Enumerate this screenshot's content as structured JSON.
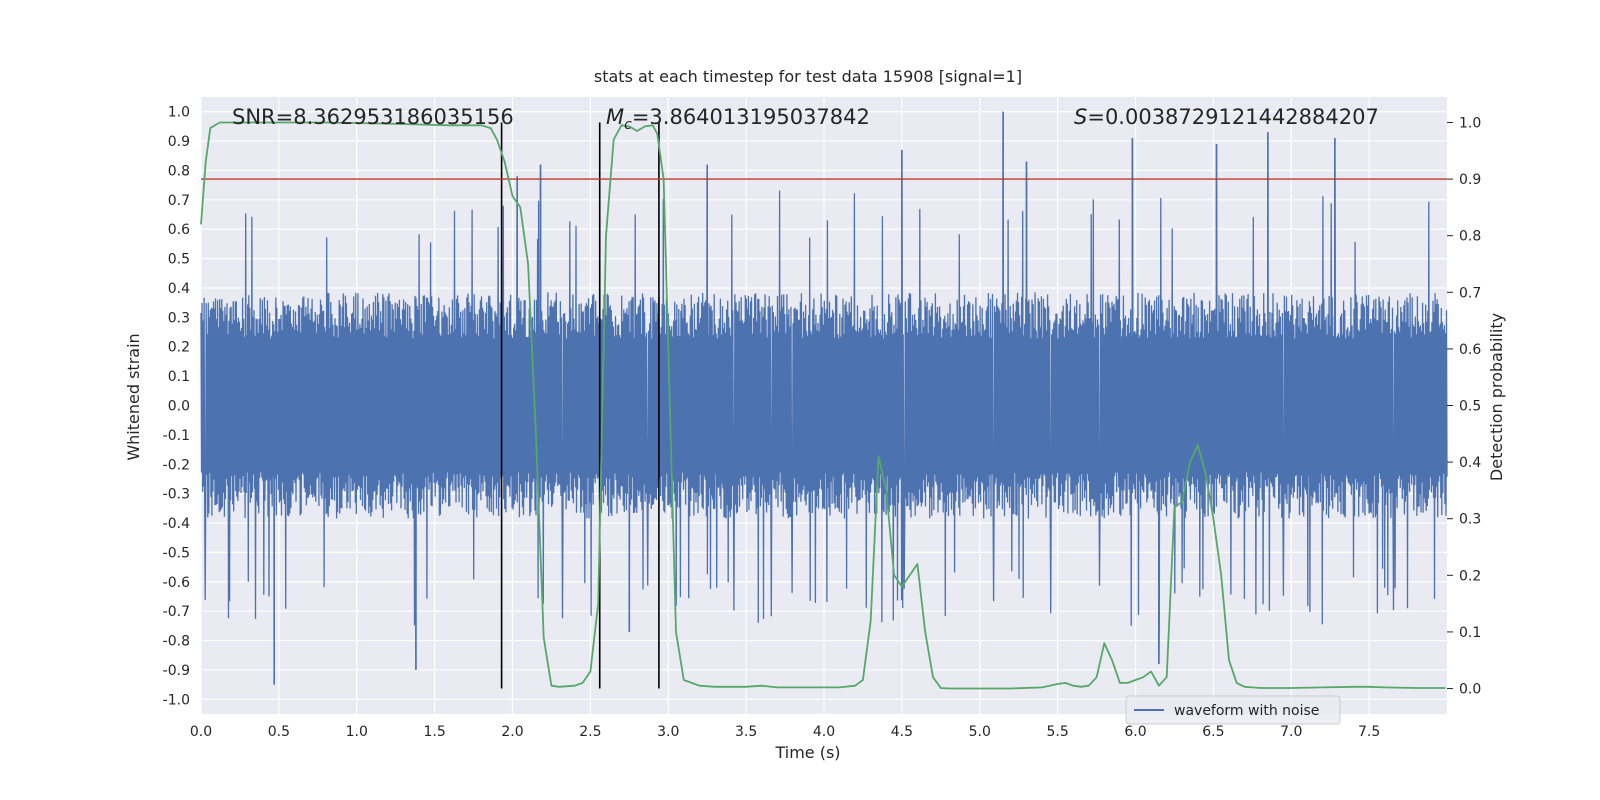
{
  "chart_data": {
    "type": "line",
    "title": "stats at each timestep for test data 15908 [signal=1]",
    "xlabel": "Time (s)",
    "ylabel": "Whitened strain",
    "y2label": "Detection probability",
    "xlim": [
      0.0,
      8.0
    ],
    "ylim": [
      -1.05,
      1.05
    ],
    "y2lim": [
      -0.045,
      1.045
    ],
    "x_ticks": [
      "0.0",
      "0.5",
      "1.0",
      "1.5",
      "2.0",
      "2.5",
      "3.0",
      "3.5",
      "4.0",
      "4.5",
      "5.0",
      "5.5",
      "6.0",
      "6.5",
      "7.0",
      "7.5"
    ],
    "y_ticks": [
      "1.0",
      "0.9",
      "0.8",
      "0.7",
      "0.6",
      "0.5",
      "0.4",
      "0.3",
      "0.2",
      "0.1",
      "0.0",
      "-0.1",
      "-0.2",
      "-0.3",
      "-0.4",
      "-0.5",
      "-0.6",
      "-0.7",
      "-0.8",
      "-0.9",
      "-1.0"
    ],
    "y2_ticks": [
      "1.0",
      "0.9",
      "0.8",
      "0.7",
      "0.6",
      "0.5",
      "0.4",
      "0.3",
      "0.2",
      "0.1",
      "0.0"
    ],
    "annotations": {
      "snr": "SNR=8.362953186035156",
      "mc_symbol": "M",
      "mc_sub": "c",
      "mc_value": "=3.864013195037842",
      "s_symbol": "S",
      "s_value": "=0.0038729121442884207"
    },
    "legend": {
      "label": "waveform with noise",
      "placement": "lower-right"
    },
    "grid": true,
    "threshold": {
      "y2": 0.9,
      "color": "#c0392b"
    },
    "vertical_markers": [
      1.93,
      2.56,
      2.94
    ],
    "waveform": {
      "name": "waveform with noise",
      "color": "#4c72b0",
      "envelope_typical": 0.35,
      "peaks": [
        {
          "x": 0.47,
          "y": -0.95
        },
        {
          "x": 1.38,
          "y": -0.9
        },
        {
          "x": 2.03,
          "y": 0.78
        },
        {
          "x": 2.18,
          "y": 0.82
        },
        {
          "x": 2.75,
          "y": -0.77
        },
        {
          "x": 3.25,
          "y": 0.82
        },
        {
          "x": 4.5,
          "y": 0.87
        },
        {
          "x": 5.15,
          "y": 1.0
        },
        {
          "x": 5.3,
          "y": 0.83
        },
        {
          "x": 5.98,
          "y": 0.91
        },
        {
          "x": 6.15,
          "y": -0.88
        },
        {
          "x": 6.52,
          "y": 0.89
        },
        {
          "x": 6.85,
          "y": 0.93
        },
        {
          "x": 7.28,
          "y": 0.91
        }
      ]
    },
    "probability": {
      "color": "#55a868",
      "x": [
        0.0,
        0.03,
        0.06,
        0.12,
        0.2,
        0.4,
        0.8,
        1.2,
        1.6,
        1.8,
        1.86,
        1.9,
        1.95,
        2.0,
        2.05,
        2.1,
        2.15,
        2.2,
        2.25,
        2.3,
        2.4,
        2.45,
        2.5,
        2.55,
        2.6,
        2.65,
        2.7,
        2.75,
        2.8,
        2.85,
        2.9,
        2.93,
        2.97,
        3.0,
        3.05,
        3.1,
        3.2,
        3.3,
        3.5,
        3.6,
        3.7,
        3.8,
        4.0,
        4.1,
        4.2,
        4.25,
        4.3,
        4.35,
        4.4,
        4.45,
        4.5,
        4.55,
        4.6,
        4.65,
        4.7,
        4.75,
        4.8,
        5.0,
        5.2,
        5.4,
        5.5,
        5.55,
        5.6,
        5.65,
        5.7,
        5.75,
        5.8,
        5.85,
        5.9,
        5.95,
        6.0,
        6.05,
        6.1,
        6.15,
        6.2,
        6.25,
        6.3,
        6.35,
        6.4,
        6.45,
        6.5,
        6.55,
        6.6,
        6.65,
        6.7,
        6.75,
        6.8,
        6.9,
        7.0,
        7.2,
        7.4,
        7.5,
        7.6,
        7.8,
        7.99
      ],
      "y": [
        0.82,
        0.93,
        0.99,
        1.0,
        1.0,
        1.0,
        1.0,
        0.998,
        0.995,
        0.995,
        0.99,
        0.97,
        0.93,
        0.87,
        0.85,
        0.75,
        0.45,
        0.09,
        0.005,
        0.003,
        0.005,
        0.01,
        0.03,
        0.15,
        0.8,
        0.97,
        0.995,
        0.993,
        0.985,
        0.993,
        0.995,
        0.98,
        0.9,
        0.6,
        0.1,
        0.015,
        0.005,
        0.003,
        0.003,
        0.005,
        0.002,
        0.002,
        0.002,
        0.002,
        0.005,
        0.015,
        0.12,
        0.41,
        0.35,
        0.2,
        0.18,
        0.2,
        0.22,
        0.1,
        0.02,
        0.001,
        0.0,
        0.0,
        0.0,
        0.002,
        0.008,
        0.01,
        0.005,
        0.003,
        0.005,
        0.02,
        0.08,
        0.05,
        0.01,
        0.01,
        0.015,
        0.02,
        0.03,
        0.005,
        0.02,
        0.32,
        0.33,
        0.4,
        0.43,
        0.38,
        0.3,
        0.2,
        0.05,
        0.01,
        0.003,
        0.002,
        0.001,
        0.001,
        0.001,
        0.002,
        0.003,
        0.003,
        0.002,
        0.001,
        0.001
      ]
    }
  }
}
